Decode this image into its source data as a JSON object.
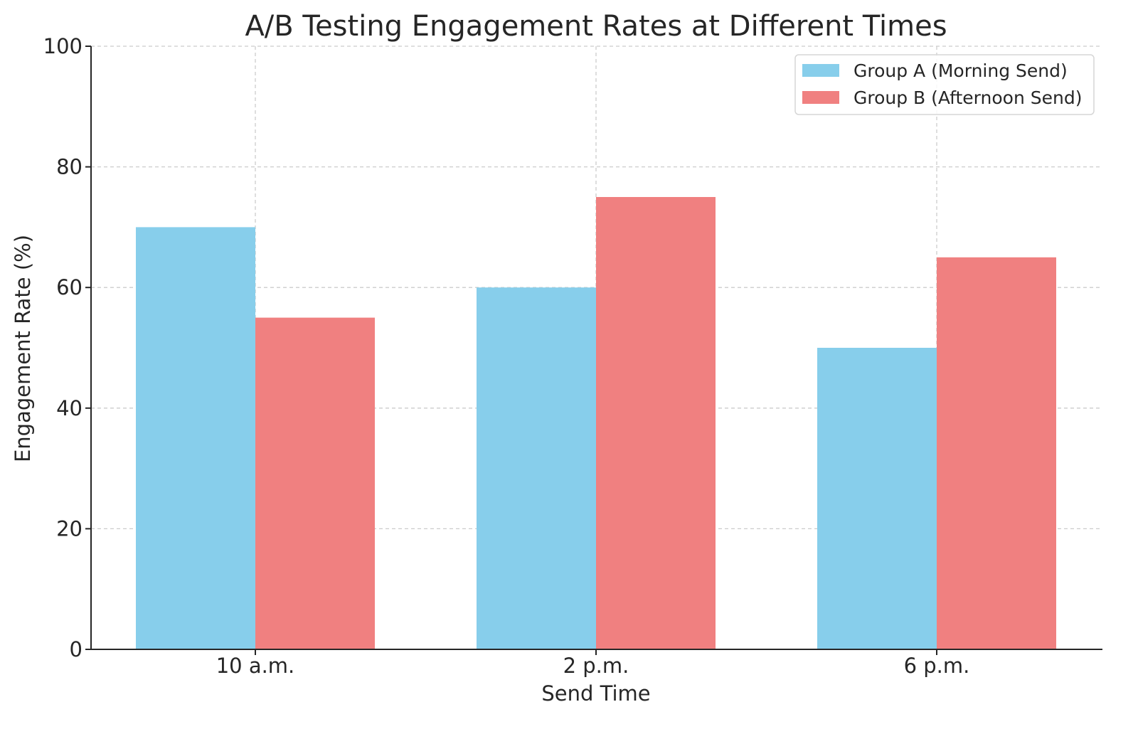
{
  "chart_data": {
    "type": "bar",
    "title": "A/B Testing Engagement Rates at Different Times",
    "xlabel": "Send Time",
    "ylabel": "Engagement Rate (%)",
    "categories": [
      "10 a.m.",
      "2 p.m.",
      "6 p.m."
    ],
    "series": [
      {
        "name": "Group A (Morning Send)",
        "values": [
          70,
          60,
          50
        ],
        "color": "#87CEEB"
      },
      {
        "name": "Group B (Afternoon Send)",
        "values": [
          55,
          75,
          65
        ],
        "color": "#F08080"
      }
    ],
    "ylim": [
      0,
      100
    ],
    "yticks": [
      0,
      20,
      40,
      60,
      80,
      100
    ],
    "grid": true,
    "legend_position": "top-right"
  }
}
